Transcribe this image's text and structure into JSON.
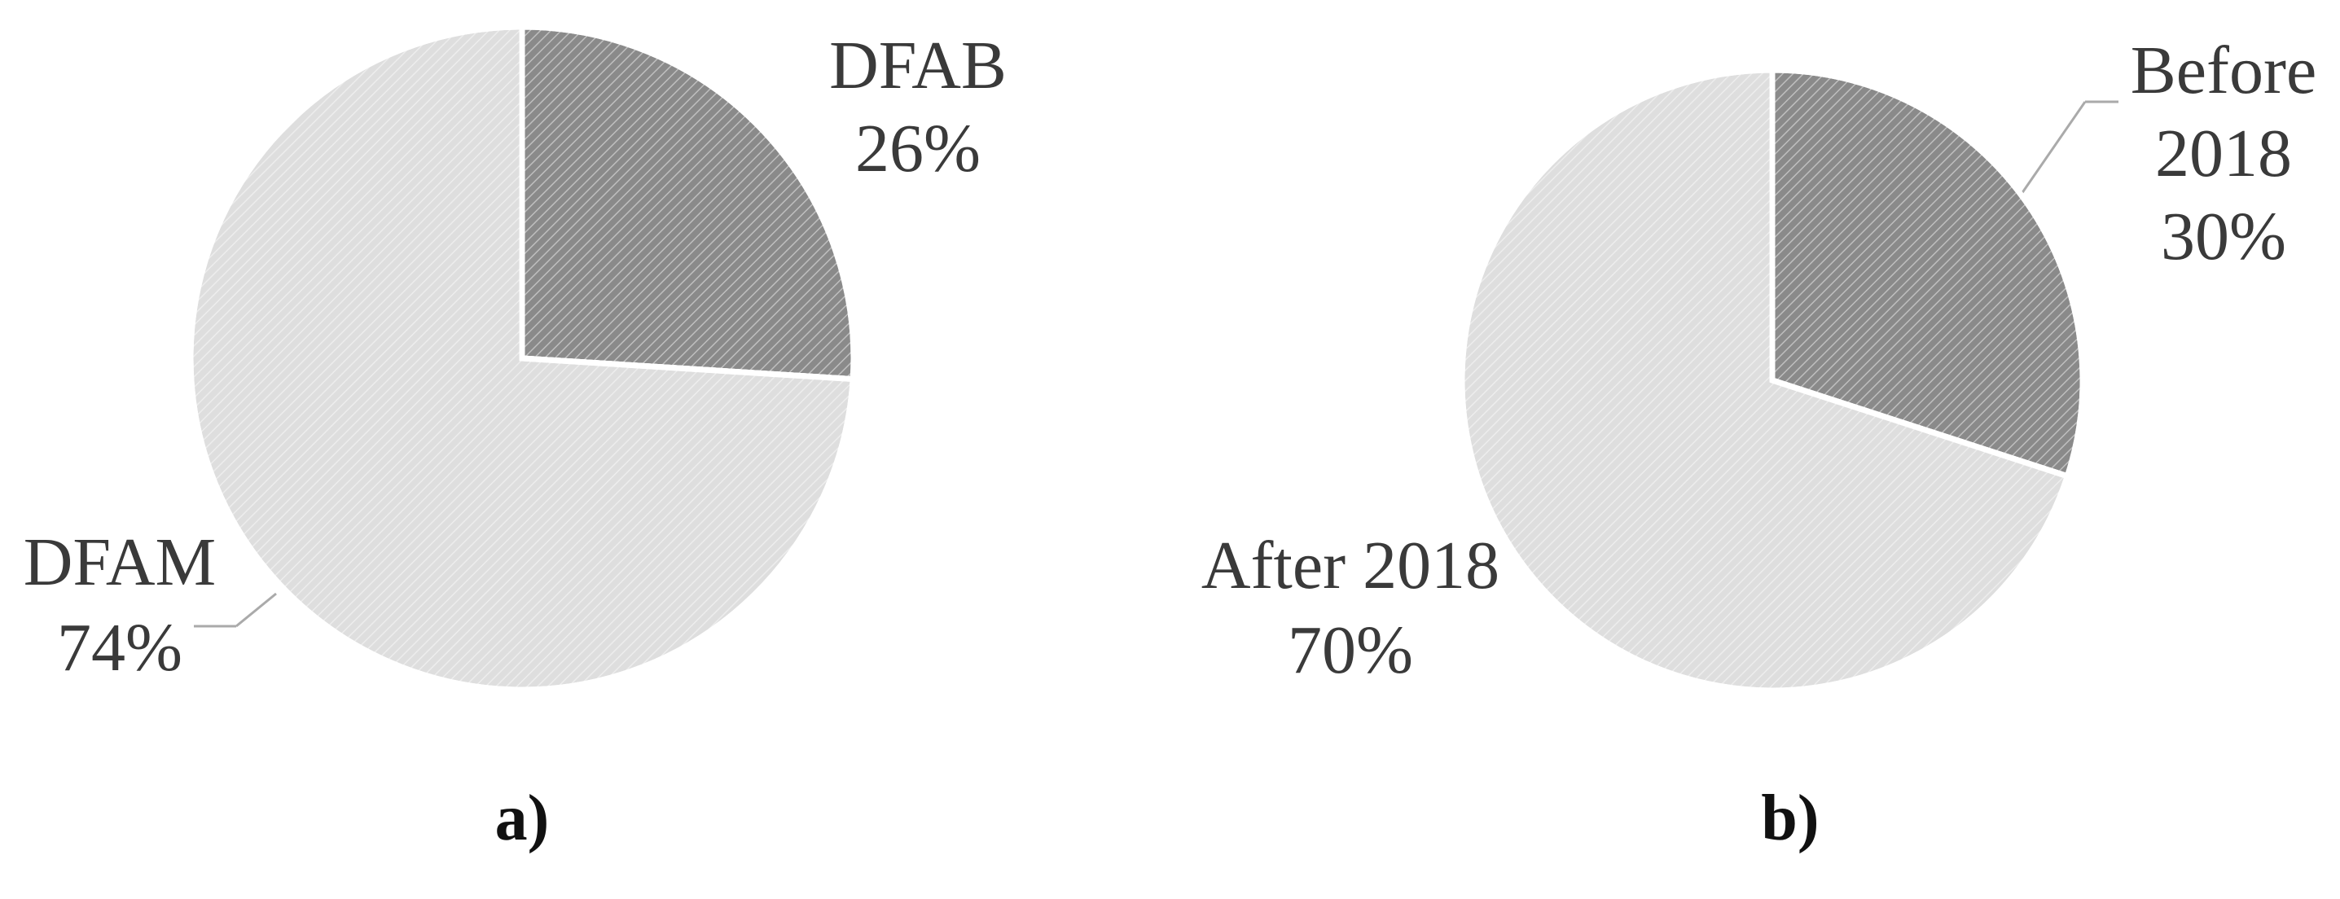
{
  "chart_data": [
    {
      "type": "pie",
      "caption": "a)",
      "categories": [
        "DFAB",
        "DFAM"
      ],
      "values": [
        26,
        74
      ],
      "value_labels": [
        "26%",
        "74%"
      ],
      "colors": [
        "#8a8a8a",
        "#dedede"
      ]
    },
    {
      "type": "pie",
      "caption": "b)",
      "categories": [
        "Before 2018",
        "After 2018"
      ],
      "values": [
        30,
        70
      ],
      "value_labels": [
        "30%",
        "70%"
      ],
      "colors": [
        "#8a8a8a",
        "#dedede"
      ]
    }
  ]
}
